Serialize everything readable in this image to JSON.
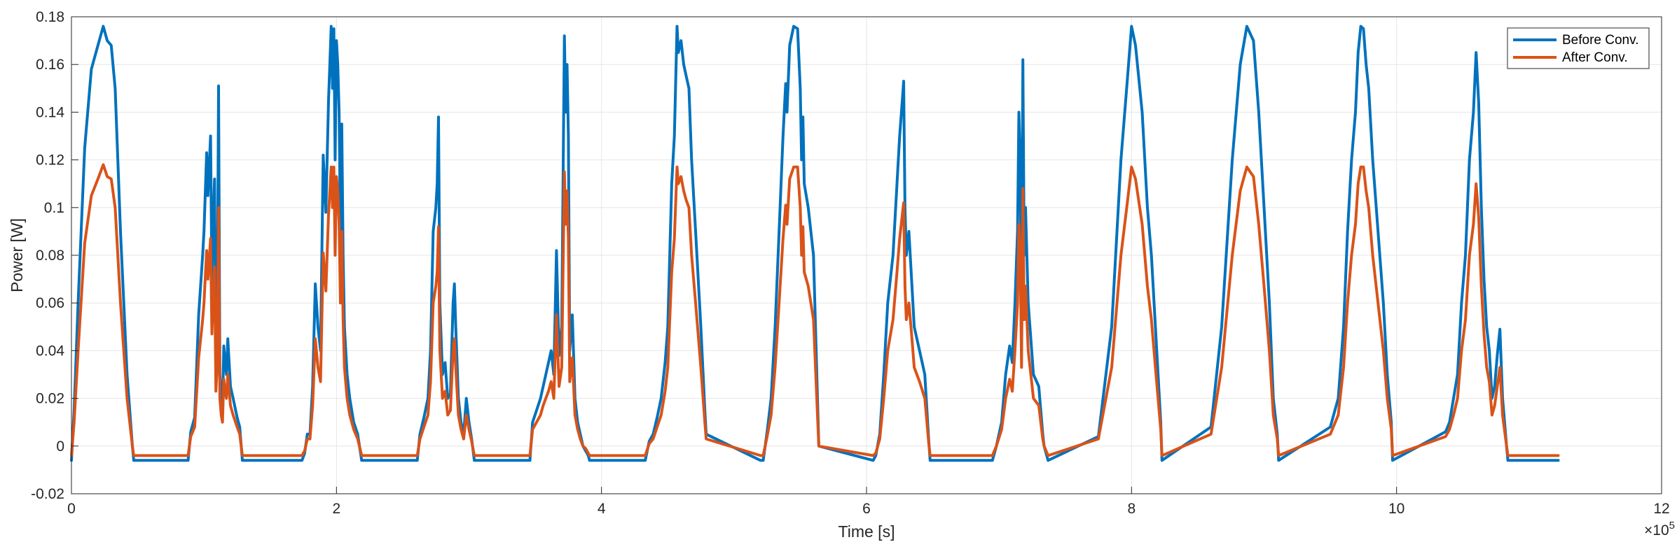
{
  "chart_data": {
    "type": "line",
    "title": "",
    "xlabel": "Time [s]",
    "ylabel": "Power [W]",
    "x_exponent_label": "×10",
    "x_exponent_power": "5",
    "xlim": [
      0,
      12
    ],
    "ylim": [
      -0.02,
      0.18
    ],
    "x_ticks": [
      0,
      2,
      4,
      6,
      8,
      10,
      12
    ],
    "x_tick_labels": [
      "0",
      "2",
      "4",
      "6",
      "8",
      "10",
      "12"
    ],
    "y_ticks": [
      -0.02,
      0,
      0.02,
      0.04,
      0.06,
      0.08,
      0.1,
      0.12,
      0.14,
      0.16,
      0.18
    ],
    "y_tick_labels": [
      "-0.02",
      "0",
      "0.02",
      "0.04",
      "0.06",
      "0.08",
      "0.1",
      "0.12",
      "0.14",
      "0.16",
      "0.18"
    ],
    "grid": true,
    "legend_position": "top-right",
    "series": [
      {
        "name": "Before Conv.",
        "color": "#0072BD",
        "x": [
          0,
          0.02,
          0.05,
          0.1,
          0.15,
          0.2,
          0.24,
          0.27,
          0.3,
          0.33,
          0.37,
          0.42,
          0.46,
          0.47,
          0.88,
          0.9,
          0.93,
          0.96,
          0.99,
          1.0,
          1.02,
          1.03,
          1.05,
          1.06,
          1.07,
          1.08,
          1.09,
          1.1,
          1.11,
          1.12,
          1.13,
          1.14,
          1.15,
          1.16,
          1.17,
          1.18,
          1.2,
          1.22,
          1.25,
          1.27,
          1.29,
          1.31,
          1.32,
          1.74,
          1.76,
          1.78,
          1.8,
          1.82,
          1.84,
          1.86,
          1.88,
          1.9,
          1.92,
          1.94,
          1.96,
          1.97,
          1.98,
          1.99,
          2.0,
          2.01,
          2.02,
          2.03,
          2.04,
          2.05,
          2.06,
          2.08,
          2.1,
          2.13,
          2.16,
          2.19,
          2.21,
          2.22,
          2.61,
          2.63,
          2.66,
          2.69,
          2.71,
          2.73,
          2.75,
          2.76,
          2.77,
          2.78,
          2.79,
          2.8,
          2.82,
          2.84,
          2.86,
          2.88,
          2.89,
          2.9,
          2.92,
          2.94,
          2.96,
          2.98,
          3.0,
          3.02,
          3.04,
          3.05,
          3.46,
          3.48,
          3.51,
          3.54,
          3.56,
          3.58,
          3.6,
          3.62,
          3.64,
          3.66,
          3.68,
          3.7,
          3.72,
          3.73,
          3.74,
          3.75,
          3.76,
          3.78,
          3.8,
          3.82,
          3.84,
          3.86,
          3.88,
          3.9,
          3.91,
          4.33,
          4.36,
          4.39,
          4.42,
          4.45,
          4.48,
          4.5,
          4.53,
          4.55,
          4.57,
          4.58,
          4.6,
          4.62,
          4.64,
          4.66,
          4.68,
          4.71,
          4.75,
          4.78,
          4.79,
          5.2,
          5.22,
          5.25,
          5.28,
          5.31,
          5.34,
          5.37,
          5.39,
          5.4,
          5.42,
          5.45,
          5.48,
          5.5,
          5.51,
          5.52,
          5.53,
          5.56,
          5.6,
          5.63,
          5.64,
          6.05,
          6.07,
          6.1,
          6.13,
          6.16,
          6.2,
          6.23,
          6.25,
          6.27,
          6.28,
          6.29,
          6.3,
          6.32,
          6.34,
          6.36,
          6.4,
          6.44,
          6.47,
          6.48,
          6.92,
          6.95,
          6.98,
          7.02,
          7.05,
          7.08,
          7.1,
          7.12,
          7.14,
          7.15,
          7.16,
          7.17,
          7.18,
          7.19,
          7.2,
          7.22,
          7.26,
          7.3,
          7.33,
          7.34,
          7.37,
          7.75,
          7.85,
          7.92,
          7.97,
          8.0,
          8.03,
          8.08,
          8.12,
          8.15,
          8.18,
          8.22,
          8.23,
          8.6,
          8.68,
          8.76,
          8.82,
          8.87,
          8.92,
          8.96,
          9.0,
          9.04,
          9.07,
          9.1,
          9.11,
          9.5,
          9.56,
          9.6,
          9.63,
          9.66,
          9.69,
          9.71,
          9.73,
          9.75,
          9.77,
          9.79,
          9.82,
          9.86,
          9.9,
          9.93,
          9.96,
          9.97,
          10.37,
          10.4,
          10.43,
          10.46,
          10.49,
          10.52,
          10.55,
          10.58,
          10.6,
          10.62,
          10.64,
          10.66,
          10.68,
          10.7,
          10.72,
          10.74,
          10.76,
          10.78,
          10.8,
          10.83,
          10.84,
          11.22
        ],
        "y": [
          -0.006,
          0.015,
          0.06,
          0.125,
          0.158,
          0.168,
          0.176,
          0.17,
          0.168,
          0.15,
          0.09,
          0.03,
          0.0,
          -0.006,
          -0.006,
          0.006,
          0.012,
          0.055,
          0.08,
          0.09,
          0.123,
          0.105,
          0.13,
          0.07,
          0.095,
          0.112,
          0.035,
          0.05,
          0.151,
          0.03,
          0.02,
          0.015,
          0.042,
          0.035,
          0.03,
          0.045,
          0.025,
          0.02,
          0.012,
          0.008,
          -0.006,
          -0.006,
          -0.006,
          -0.006,
          -0.003,
          0.005,
          0.005,
          0.025,
          0.068,
          0.05,
          0.04,
          0.122,
          0.098,
          0.145,
          0.176,
          0.15,
          0.175,
          0.12,
          0.17,
          0.16,
          0.14,
          0.09,
          0.135,
          0.08,
          0.05,
          0.03,
          0.02,
          0.01,
          0.005,
          -0.006,
          -0.006,
          -0.006,
          -0.006,
          0.005,
          0.012,
          0.02,
          0.04,
          0.09,
          0.1,
          0.11,
          0.138,
          0.06,
          0.045,
          0.03,
          0.035,
          0.02,
          0.022,
          0.06,
          0.068,
          0.05,
          0.02,
          0.01,
          0.005,
          0.02,
          0.01,
          0.003,
          -0.006,
          -0.006,
          -0.006,
          0.01,
          0.015,
          0.02,
          0.025,
          0.03,
          0.035,
          0.04,
          0.03,
          0.082,
          0.038,
          0.05,
          0.172,
          0.14,
          0.16,
          0.13,
          0.04,
          0.055,
          0.02,
          0.01,
          0.005,
          0.0,
          -0.002,
          -0.004,
          -0.006,
          -0.006,
          0.002,
          0.005,
          0.012,
          0.02,
          0.035,
          0.05,
          0.11,
          0.13,
          0.176,
          0.165,
          0.17,
          0.16,
          0.155,
          0.15,
          0.12,
          0.09,
          0.05,
          0.015,
          0.005,
          -0.006,
          -0.006,
          0.006,
          0.02,
          0.05,
          0.09,
          0.13,
          0.152,
          0.14,
          0.168,
          0.176,
          0.175,
          0.15,
          0.12,
          0.138,
          0.11,
          0.1,
          0.08,
          0.02,
          0.0,
          -0.006,
          -0.004,
          0.005,
          0.03,
          0.06,
          0.08,
          0.11,
          0.13,
          0.145,
          0.153,
          0.1,
          0.08,
          0.09,
          0.07,
          0.05,
          0.04,
          0.03,
          0.002,
          -0.006,
          -0.006,
          -0.006,
          0.0,
          0.01,
          0.03,
          0.042,
          0.035,
          0.06,
          0.09,
          0.14,
          0.12,
          0.05,
          0.162,
          0.08,
          0.1,
          0.06,
          0.03,
          0.025,
          0.005,
          0.0,
          -0.006,
          0.004,
          0.05,
          0.12,
          0.155,
          0.176,
          0.168,
          0.14,
          0.1,
          0.08,
          0.05,
          0.01,
          -0.006,
          0.008,
          0.05,
          0.12,
          0.16,
          0.176,
          0.17,
          0.14,
          0.1,
          0.06,
          0.02,
          0.005,
          -0.006,
          0.008,
          0.02,
          0.05,
          0.09,
          0.12,
          0.14,
          0.165,
          0.176,
          0.175,
          0.16,
          0.15,
          0.12,
          0.09,
          0.06,
          0.03,
          0.01,
          -0.006,
          0.006,
          0.01,
          0.02,
          0.03,
          0.06,
          0.08,
          0.12,
          0.14,
          0.165,
          0.144,
          0.1,
          0.07,
          0.05,
          0.04,
          0.02,
          0.025,
          0.038,
          0.049,
          0.02,
          0.0,
          -0.006,
          -0.006
        ]
      },
      {
        "name": "After Conv.",
        "color": "#D95319",
        "x": [
          0,
          0.02,
          0.05,
          0.1,
          0.15,
          0.2,
          0.24,
          0.27,
          0.3,
          0.33,
          0.37,
          0.42,
          0.46,
          0.47,
          0.88,
          0.9,
          0.93,
          0.96,
          0.99,
          1.0,
          1.02,
          1.03,
          1.05,
          1.06,
          1.07,
          1.08,
          1.09,
          1.1,
          1.11,
          1.12,
          1.13,
          1.14,
          1.15,
          1.16,
          1.17,
          1.18,
          1.2,
          1.22,
          1.25,
          1.27,
          1.29,
          1.31,
          1.32,
          1.74,
          1.76,
          1.78,
          1.8,
          1.82,
          1.84,
          1.86,
          1.88,
          1.9,
          1.92,
          1.94,
          1.96,
          1.97,
          1.98,
          1.99,
          2.0,
          2.01,
          2.02,
          2.03,
          2.04,
          2.05,
          2.06,
          2.08,
          2.1,
          2.13,
          2.16,
          2.19,
          2.21,
          2.22,
          2.61,
          2.63,
          2.66,
          2.69,
          2.71,
          2.73,
          2.75,
          2.76,
          2.77,
          2.78,
          2.79,
          2.8,
          2.82,
          2.84,
          2.86,
          2.88,
          2.89,
          2.9,
          2.92,
          2.94,
          2.96,
          2.98,
          3.0,
          3.02,
          3.04,
          3.05,
          3.46,
          3.48,
          3.51,
          3.54,
          3.56,
          3.58,
          3.6,
          3.62,
          3.64,
          3.66,
          3.68,
          3.7,
          3.72,
          3.73,
          3.74,
          3.75,
          3.76,
          3.78,
          3.8,
          3.82,
          3.84,
          3.86,
          3.88,
          3.9,
          3.91,
          4.33,
          4.36,
          4.39,
          4.42,
          4.45,
          4.48,
          4.5,
          4.53,
          4.55,
          4.57,
          4.58,
          4.6,
          4.62,
          4.64,
          4.66,
          4.68,
          4.71,
          4.75,
          4.78,
          4.79,
          5.2,
          5.22,
          5.25,
          5.28,
          5.31,
          5.34,
          5.37,
          5.39,
          5.4,
          5.42,
          5.45,
          5.48,
          5.5,
          5.51,
          5.52,
          5.53,
          5.56,
          5.6,
          5.63,
          5.64,
          6.05,
          6.07,
          6.1,
          6.13,
          6.16,
          6.2,
          6.23,
          6.25,
          6.27,
          6.28,
          6.29,
          6.3,
          6.32,
          6.34,
          6.36,
          6.4,
          6.44,
          6.47,
          6.48,
          6.92,
          6.95,
          6.98,
          7.02,
          7.05,
          7.08,
          7.1,
          7.12,
          7.14,
          7.15,
          7.16,
          7.17,
          7.18,
          7.19,
          7.2,
          7.22,
          7.26,
          7.3,
          7.33,
          7.34,
          7.37,
          7.75,
          7.85,
          7.92,
          7.97,
          8.0,
          8.03,
          8.08,
          8.12,
          8.15,
          8.18,
          8.22,
          8.23,
          8.6,
          8.68,
          8.76,
          8.82,
          8.87,
          8.92,
          8.96,
          9.0,
          9.04,
          9.07,
          9.1,
          9.11,
          9.5,
          9.56,
          9.6,
          9.63,
          9.66,
          9.69,
          9.71,
          9.73,
          9.75,
          9.77,
          9.79,
          9.82,
          9.86,
          9.9,
          9.93,
          9.96,
          9.97,
          10.37,
          10.4,
          10.43,
          10.46,
          10.49,
          10.52,
          10.55,
          10.58,
          10.6,
          10.62,
          10.64,
          10.66,
          10.68,
          10.7,
          10.72,
          10.74,
          10.76,
          10.78,
          10.8,
          10.83,
          10.84,
          11.22
        ],
        "y": [
          -0.004,
          0.01,
          0.04,
          0.085,
          0.105,
          0.112,
          0.118,
          0.113,
          0.112,
          0.1,
          0.06,
          0.02,
          0.0,
          -0.004,
          -0.004,
          0.004,
          0.008,
          0.037,
          0.053,
          0.06,
          0.082,
          0.07,
          0.087,
          0.047,
          0.063,
          0.075,
          0.023,
          0.033,
          0.1,
          0.02,
          0.013,
          0.01,
          0.028,
          0.023,
          0.02,
          0.03,
          0.017,
          0.013,
          0.008,
          0.005,
          -0.004,
          -0.004,
          -0.004,
          -0.004,
          -0.002,
          0.003,
          0.003,
          0.017,
          0.045,
          0.033,
          0.027,
          0.081,
          0.065,
          0.097,
          0.117,
          0.1,
          0.117,
          0.08,
          0.113,
          0.107,
          0.093,
          0.06,
          0.09,
          0.053,
          0.033,
          0.02,
          0.013,
          0.007,
          0.003,
          -0.004,
          -0.004,
          -0.004,
          -0.004,
          0.003,
          0.008,
          0.013,
          0.027,
          0.06,
          0.067,
          0.073,
          0.092,
          0.04,
          0.03,
          0.02,
          0.023,
          0.013,
          0.015,
          0.04,
          0.045,
          0.033,
          0.013,
          0.007,
          0.003,
          0.013,
          0.007,
          0.002,
          -0.004,
          -0.004,
          -0.004,
          0.007,
          0.01,
          0.013,
          0.017,
          0.02,
          0.023,
          0.027,
          0.02,
          0.055,
          0.025,
          0.033,
          0.115,
          0.093,
          0.107,
          0.087,
          0.027,
          0.037,
          0.013,
          0.007,
          0.003,
          0.0,
          -0.001,
          -0.003,
          -0.004,
          -0.004,
          0.001,
          0.003,
          0.008,
          0.013,
          0.023,
          0.033,
          0.073,
          0.087,
          0.117,
          0.11,
          0.113,
          0.107,
          0.103,
          0.1,
          0.08,
          0.06,
          0.033,
          0.01,
          0.003,
          -0.004,
          -0.004,
          0.004,
          0.013,
          0.033,
          0.06,
          0.087,
          0.101,
          0.093,
          0.112,
          0.117,
          0.117,
          0.1,
          0.08,
          0.092,
          0.073,
          0.067,
          0.053,
          0.013,
          0.0,
          -0.004,
          -0.003,
          0.003,
          0.02,
          0.04,
          0.053,
          0.073,
          0.087,
          0.097,
          0.102,
          0.067,
          0.053,
          0.06,
          0.047,
          0.033,
          0.027,
          0.02,
          0.001,
          -0.004,
          -0.004,
          -0.004,
          0.0,
          0.007,
          0.02,
          0.028,
          0.023,
          0.04,
          0.06,
          0.093,
          0.08,
          0.033,
          0.108,
          0.053,
          0.067,
          0.04,
          0.02,
          0.017,
          0.003,
          0.0,
          -0.004,
          0.003,
          0.033,
          0.08,
          0.103,
          0.117,
          0.112,
          0.093,
          0.067,
          0.053,
          0.033,
          0.007,
          -0.004,
          0.005,
          0.033,
          0.08,
          0.107,
          0.117,
          0.113,
          0.093,
          0.067,
          0.04,
          0.013,
          0.003,
          -0.004,
          0.005,
          0.013,
          0.033,
          0.06,
          0.08,
          0.093,
          0.11,
          0.117,
          0.117,
          0.107,
          0.1,
          0.08,
          0.06,
          0.04,
          0.02,
          0.007,
          -0.004,
          0.004,
          0.007,
          0.013,
          0.02,
          0.04,
          0.053,
          0.08,
          0.093,
          0.11,
          0.096,
          0.067,
          0.047,
          0.033,
          0.027,
          0.013,
          0.017,
          0.025,
          0.033,
          0.013,
          0.0,
          -0.004,
          -0.004
        ]
      }
    ]
  }
}
